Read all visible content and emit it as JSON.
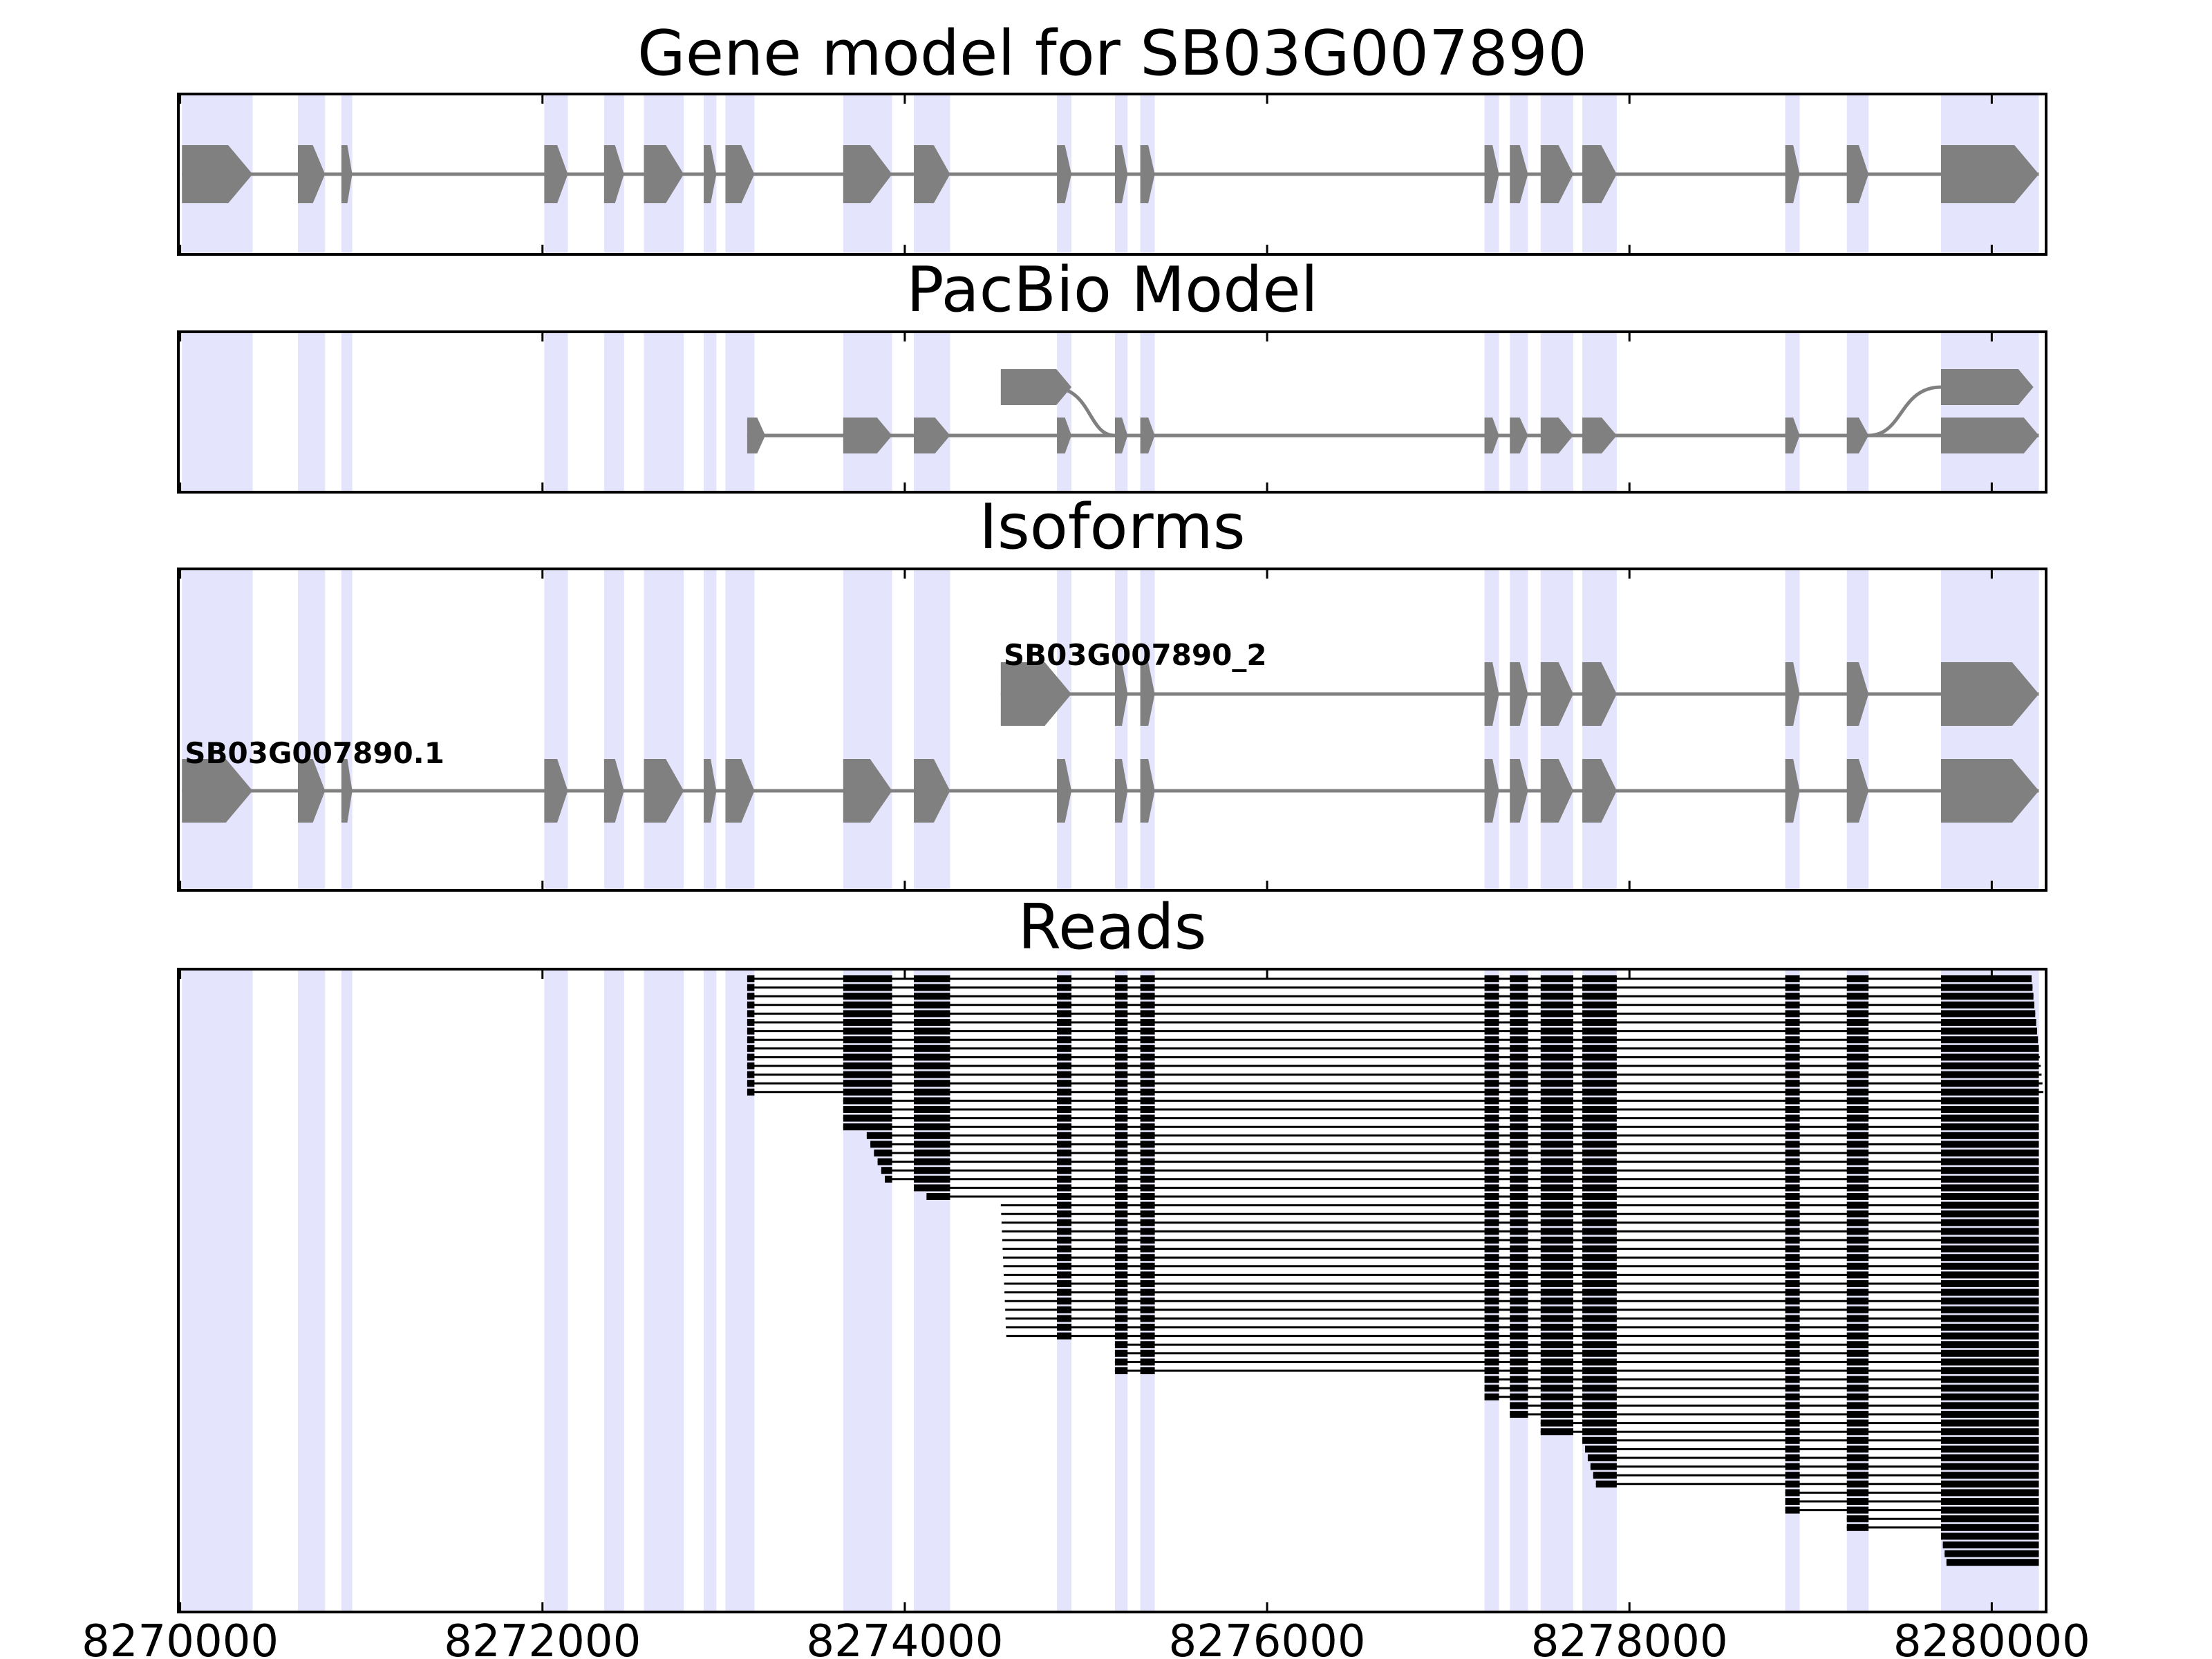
{
  "chart_data": {
    "type": "gene-track",
    "xlim": [
      8269990,
      8280300
    ],
    "xlabel": "",
    "x_ticks": [
      8270000,
      8272000,
      8274000,
      8276000,
      8278000,
      8280000
    ],
    "x_tick_labels": [
      "8270000",
      "8272000",
      "8274000",
      "8276000",
      "8278000",
      "8280000"
    ],
    "strand": "+",
    "highlight_regions": [
      [
        8270010,
        8270400
      ],
      [
        8270650,
        8270800
      ],
      [
        8270890,
        8270950
      ],
      [
        8272010,
        8272140
      ],
      [
        8272340,
        8272450
      ],
      [
        8272560,
        8272780
      ],
      [
        8272890,
        8272960
      ],
      [
        8273010,
        8273170
      ],
      [
        8273660,
        8273930
      ],
      [
        8274050,
        8274250
      ],
      [
        8274840,
        8274920
      ],
      [
        8275160,
        8275230
      ],
      [
        8275300,
        8275380
      ],
      [
        8277200,
        8277280
      ],
      [
        8277340,
        8277440
      ],
      [
        8277510,
        8277690
      ],
      [
        8277740,
        8277930
      ],
      [
        8278860,
        8278940
      ],
      [
        8279200,
        8279320
      ],
      [
        8279720,
        8280260
      ]
    ],
    "panels": [
      {
        "title": "Gene model for SB03G007890",
        "models": [
          {
            "label": "",
            "exons": [
              [
                8270010,
                8270400
              ],
              [
                8270650,
                8270800
              ],
              [
                8270890,
                8270950
              ],
              [
                8272010,
                8272140
              ],
              [
                8272340,
                8272450
              ],
              [
                8272560,
                8272780
              ],
              [
                8272890,
                8272960
              ],
              [
                8273010,
                8273170
              ],
              [
                8273660,
                8273930
              ],
              [
                8274050,
                8274250
              ],
              [
                8274840,
                8274920
              ],
              [
                8275160,
                8275230
              ],
              [
                8275300,
                8275380
              ],
              [
                8277200,
                8277280
              ],
              [
                8277340,
                8277440
              ],
              [
                8277510,
                8277690
              ],
              [
                8277740,
                8277930
              ],
              [
                8278860,
                8278940
              ],
              [
                8279200,
                8279320
              ],
              [
                8279720,
                8280260
              ]
            ]
          }
        ]
      },
      {
        "title": "PacBio Model",
        "models": [
          {
            "label": "",
            "exons": [
              [
                8274530,
                8274920
              ]
            ],
            "join_to": [
              8275160,
              1
            ]
          },
          {
            "label": "",
            "exons": [
              [
                8273130,
                8273230
              ],
              [
                8273660,
                8273930
              ],
              [
                8274050,
                8274250
              ],
              [
                8274840,
                8274920
              ],
              [
                8275160,
                8275230
              ],
              [
                8275300,
                8275380
              ],
              [
                8277200,
                8277280
              ],
              [
                8277340,
                8277440
              ],
              [
                8277510,
                8277690
              ],
              [
                8277740,
                8277930
              ],
              [
                8278860,
                8278940
              ],
              [
                8279200,
                8279320
              ],
              [
                8279720,
                8280260
              ]
            ]
          },
          {
            "label": "",
            "exons": [
              [
                8279720,
                8280230
              ]
            ],
            "join_from": [
              8279320,
              1
            ]
          }
        ]
      },
      {
        "title": "Isoforms",
        "models": [
          {
            "label": "SB03G007890_2",
            "exons": [
              [
                8274530,
                8274920
              ],
              [
                8275160,
                8275230
              ],
              [
                8275300,
                8275380
              ],
              [
                8277200,
                8277280
              ],
              [
                8277340,
                8277440
              ],
              [
                8277510,
                8277690
              ],
              [
                8277740,
                8277930
              ],
              [
                8278860,
                8278940
              ],
              [
                8279200,
                8279320
              ],
              [
                8279720,
                8280260
              ]
            ]
          },
          {
            "label": "SB03G007890.1",
            "exons": [
              [
                8270010,
                8270400
              ],
              [
                8270650,
                8270800
              ],
              [
                8270890,
                8270950
              ],
              [
                8272010,
                8272140
              ],
              [
                8272340,
                8272450
              ],
              [
                8272560,
                8272780
              ],
              [
                8272890,
                8272960
              ],
              [
                8273010,
                8273170
              ],
              [
                8273660,
                8273930
              ],
              [
                8274050,
                8274250
              ],
              [
                8274840,
                8274920
              ],
              [
                8275160,
                8275230
              ],
              [
                8275300,
                8275380
              ],
              [
                8277200,
                8277280
              ],
              [
                8277340,
                8277440
              ],
              [
                8277510,
                8277690
              ],
              [
                8277740,
                8277930
              ],
              [
                8278860,
                8278940
              ],
              [
                8279200,
                8279320
              ],
              [
                8279720,
                8280260
              ]
            ]
          }
        ]
      },
      {
        "title": "Reads",
        "read_groups": [
          {
            "count": 14,
            "start": 8273130,
            "end": 8280220,
            "start_step": 0,
            "end_step": 5
          },
          {
            "count": 4,
            "start": 8273660,
            "end": 8280260,
            "start_step": 0,
            "end_step": 0
          },
          {
            "count": 6,
            "start": 8273790,
            "end": 8280260,
            "start_step": 20,
            "end_step": 0
          },
          {
            "count": 2,
            "start": 8274050,
            "end": 8280260,
            "start_step": 70,
            "end_step": 0
          },
          {
            "count": 16,
            "start": 8274530,
            "end": 8280260,
            "start_step": 2,
            "end_step": 0
          },
          {
            "count": 4,
            "start": 8275160,
            "end": 8280260,
            "start_step": 0,
            "end_step": 0
          },
          {
            "count": 3,
            "start": 8277200,
            "end": 8280260,
            "start_step": 0,
            "end_step": 0
          },
          {
            "count": 2,
            "start": 8277340,
            "end": 8280260,
            "start_step": 0,
            "end_step": 0
          },
          {
            "count": 2,
            "start": 8277510,
            "end": 8280260,
            "start_step": 0,
            "end_step": 0
          },
          {
            "count": 6,
            "start": 8277740,
            "end": 8280260,
            "start_step": 15,
            "end_step": 0
          },
          {
            "count": 3,
            "start": 8278860,
            "end": 8280260,
            "start_step": 0,
            "end_step": 0
          },
          {
            "count": 2,
            "start": 8279200,
            "end": 8280260,
            "start_step": 0,
            "end_step": 0
          },
          {
            "count": 4,
            "start": 8279720,
            "end": 8280260,
            "start_step": 10,
            "end_step": 0
          }
        ],
        "read_exons": [
          [
            8270010,
            8270400
          ],
          [
            8270650,
            8270800
          ],
          [
            8270890,
            8270950
          ],
          [
            8272010,
            8272140
          ],
          [
            8272340,
            8272450
          ],
          [
            8272560,
            8272780
          ],
          [
            8272890,
            8272960
          ],
          [
            8273010,
            8273170
          ],
          [
            8273660,
            8273930
          ],
          [
            8274050,
            8274250
          ],
          [
            8274840,
            8274920
          ],
          [
            8275160,
            8275230
          ],
          [
            8275300,
            8275380
          ],
          [
            8277200,
            8277280
          ],
          [
            8277340,
            8277440
          ],
          [
            8277510,
            8277690
          ],
          [
            8277740,
            8277930
          ],
          [
            8278860,
            8278940
          ],
          [
            8279200,
            8279320
          ],
          [
            8279720,
            8280260
          ]
        ]
      }
    ],
    "colors": {
      "highlight": "#e4e4fc",
      "model": "#808080",
      "read": "#000000",
      "axis": "#000000"
    }
  }
}
